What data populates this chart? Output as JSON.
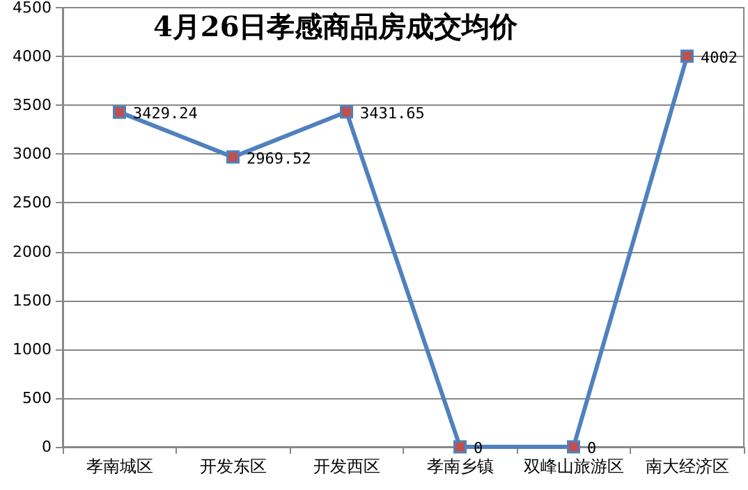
{
  "chart_data": {
    "type": "line",
    "title": "4月26日孝感商品房成交均价",
    "categories": [
      "孝南城区",
      "开发东区",
      "开发西区",
      "孝南乡镇",
      "双峰山旅游区",
      "南大经济区"
    ],
    "series": [
      {
        "color": "#4f81bd",
        "values": [
          3429.24,
          2969.52,
          3431.65,
          0,
          0,
          4002
        ]
      }
    ],
    "ylim": [
      0,
      4500
    ],
    "yticks": [
      0,
      500,
      1000,
      1500,
      2000,
      2500,
      3000,
      3500,
      4000,
      4500
    ],
    "grid": "y",
    "marker": "square",
    "line_style": "solid",
    "data_labels": true
  }
}
